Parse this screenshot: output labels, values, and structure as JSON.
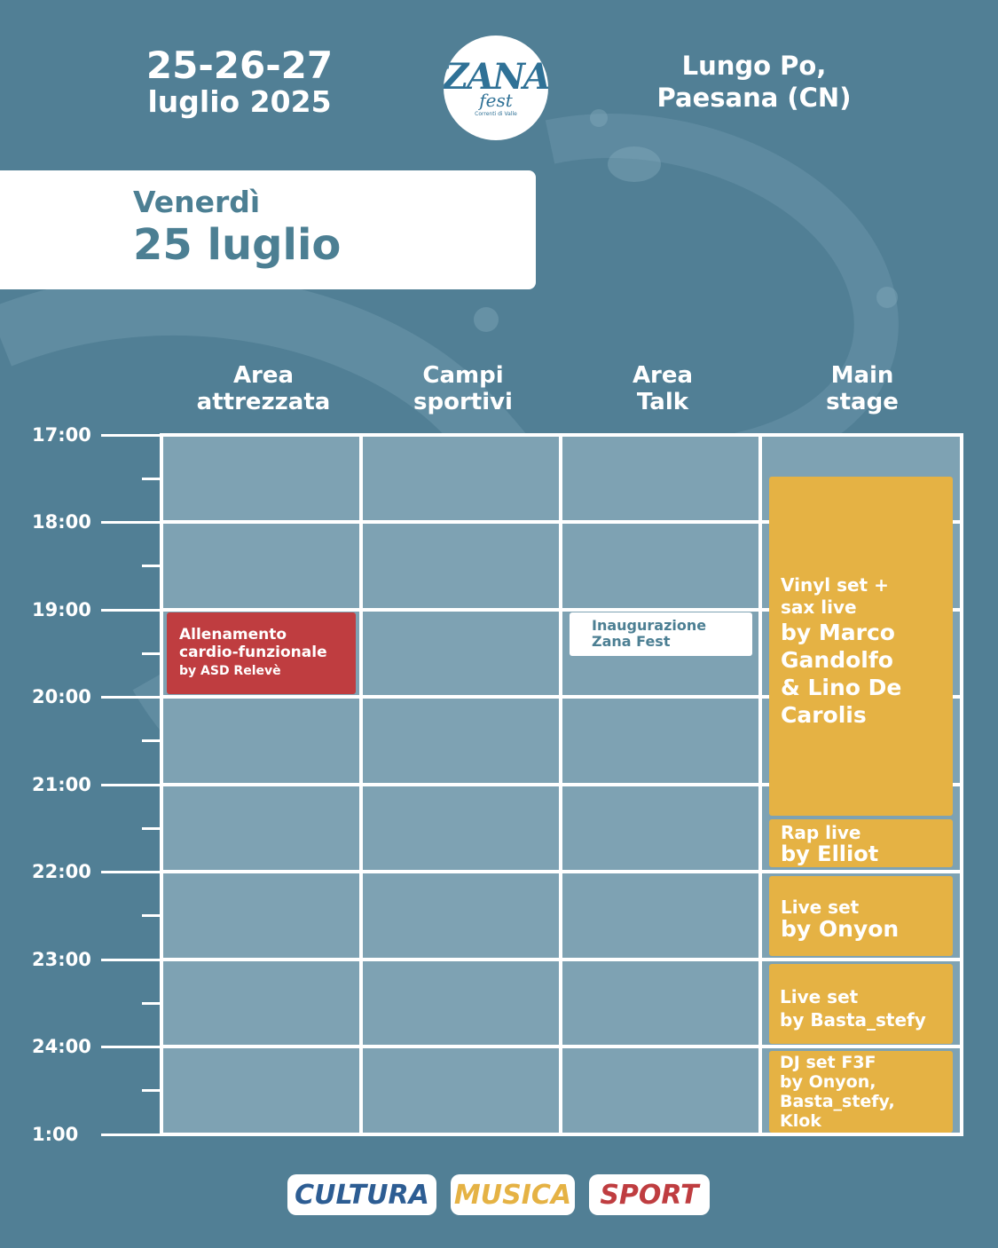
{
  "header": {
    "dates_line1": "25-26-27",
    "dates_line2": "luglio 2025",
    "place_line1": "Lungo Po,",
    "place_line2": "Paesana (CN)",
    "logo_line1": "ZANA",
    "logo_line2": "fest",
    "logo_line3": "Correnti di Valle"
  },
  "day": {
    "weekday": "Venerdì",
    "date": "25 luglio"
  },
  "columns": [
    {
      "line1": "Area",
      "line2": "attrezzata"
    },
    {
      "line1": "Campi",
      "line2": "sportivi"
    },
    {
      "line1": "Area",
      "line2": "Talk"
    },
    {
      "line1": "Main",
      "line2": "stage"
    }
  ],
  "times": [
    "17:00",
    "18:00",
    "19:00",
    "20:00",
    "21:00",
    "22:00",
    "23:00",
    "24:00",
    "1:00"
  ],
  "events": {
    "cardio": {
      "line1": "Allenamento",
      "line2": "cardio-funzionale",
      "line3": "by ASD Relevè"
    },
    "inaugurazione": {
      "line1": "Inaugurazione",
      "line2": "Zana Fest"
    },
    "vinyl": {
      "line1": "Vinyl set +",
      "line2": "sax live",
      "line3": "by Marco",
      "line4": "Gandolfo",
      "line5": "& Lino De",
      "line6": "Carolis"
    },
    "rap": {
      "line1": "Rap live",
      "line2": "by Elliot"
    },
    "onyon": {
      "line1": "Live set",
      "line2": "by Onyon"
    },
    "basta": {
      "line1": "Live set",
      "line2": "by Basta_stefy"
    },
    "dj": {
      "line1": "DJ set F3F",
      "line2": "by Onyon,",
      "line3": "Basta_stefy,",
      "line4": "Klok"
    }
  },
  "legend": {
    "cultura": "CULTURA",
    "musica": "MUSICA",
    "sport": "SPORT"
  },
  "colors": {
    "background": "#517f95",
    "grid_cell": "#7ea2b3",
    "sport_red": "#bf3d40",
    "music_yellow": "#e5b244",
    "culture_blue": "#2d5d93"
  }
}
